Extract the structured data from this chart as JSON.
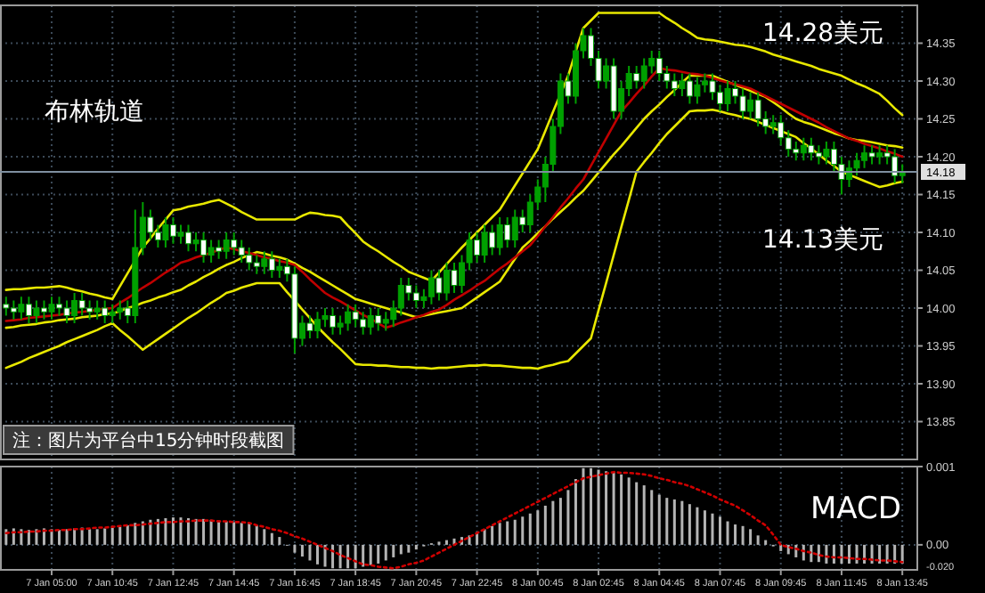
{
  "chart_data": [
    {
      "type": "candlestick",
      "color": "#00a000",
      "grid": true,
      "tick_labels": "y",
      "annotations": [
        "布林轨道",
        "14.28美元",
        "14.13美元",
        "注：图片为平台中15分钟时段截图"
      ],
      "categories": [
        null,
        null,
        null,
        null,
        null,
        null,
        null,
        null,
        null,
        null,
        null,
        null,
        null,
        null,
        null,
        null,
        null,
        null,
        null,
        null,
        null,
        null,
        null,
        null,
        null,
        null,
        null,
        null,
        null,
        null,
        null,
        null,
        null,
        null,
        null,
        null,
        null,
        null,
        null,
        null,
        null,
        null,
        null,
        null,
        null,
        null,
        null,
        null,
        null,
        null,
        null,
        null,
        null,
        null,
        null,
        null,
        null,
        null,
        null,
        null,
        null,
        null,
        null,
        null,
        null,
        null,
        null,
        null,
        null,
        null,
        null,
        null,
        null,
        null,
        null,
        null,
        null,
        null,
        null,
        null,
        null,
        null,
        null,
        null,
        null,
        null,
        null,
        null,
        null,
        null,
        null,
        null,
        null,
        null,
        null,
        null,
        null,
        null,
        null,
        null,
        null,
        null,
        null,
        null,
        null,
        null,
        null,
        null,
        null,
        null,
        null,
        null,
        null,
        null,
        null,
        null,
        null,
        null,
        null
      ],
      "ylim": [
        13.8,
        14.4
      ],
      "yticks": [
        {
          "value": 13.85,
          "label": "13.85"
        },
        {
          "value": 13.9,
          "label": "13.90"
        },
        {
          "value": 13.95,
          "label": "13.95"
        },
        {
          "value": 14,
          "label": "14.00"
        },
        {
          "value": 14.05,
          "label": "14.05"
        },
        {
          "value": 14.1,
          "label": "14.10"
        },
        {
          "value": 14.15,
          "label": "14.15"
        },
        {
          "value": 14.2,
          "label": "14.20"
        },
        {
          "value": 14.25,
          "label": "14.25"
        },
        {
          "value": 14.3,
          "label": "14.30"
        },
        {
          "value": 14.35,
          "label": "14.35"
        }
      ],
      "ref_lines": [
        {
          "axis": "y",
          "value": 14.18,
          "label": "14.18",
          "color": "#7f8fa0"
        }
      ],
      "ohlc": [
        [
          14.005,
          14.015,
          13.99,
          14.0
        ],
        [
          14.0,
          14.01,
          13.985,
          13.995
        ],
        [
          13.995,
          14.015,
          13.985,
          14.005
        ],
        [
          14.005,
          14.015,
          13.98,
          13.99
        ],
        [
          13.99,
          14.01,
          13.98,
          14.0
        ],
        [
          14.0,
          14.01,
          13.985,
          13.995
        ],
        [
          13.995,
          14.015,
          13.985,
          14.005
        ],
        [
          14.005,
          14.015,
          13.99,
          14.0
        ],
        [
          14.0,
          14.01,
          13.98,
          13.99
        ],
        [
          13.99,
          14.02,
          13.98,
          14.01
        ],
        [
          14.01,
          14.02,
          13.99,
          14.0
        ],
        [
          14.0,
          14.01,
          13.985,
          13.995
        ],
        [
          13.995,
          14.01,
          13.985,
          14.0
        ],
        [
          14.0,
          14.01,
          13.98,
          13.99
        ],
        [
          13.99,
          14.005,
          13.98,
          13.995
        ],
        [
          13.995,
          14.01,
          13.985,
          14.0
        ],
        [
          14.0,
          14.01,
          13.98,
          13.99
        ],
        [
          13.99,
          14.13,
          13.98,
          14.08
        ],
        [
          14.08,
          14.14,
          14.07,
          14.12
        ],
        [
          14.12,
          14.13,
          14.09,
          14.1
        ],
        [
          14.1,
          14.11,
          14.08,
          14.09
        ],
        [
          14.09,
          14.12,
          14.08,
          14.11
        ],
        [
          14.11,
          14.12,
          14.085,
          14.095
        ],
        [
          14.095,
          14.11,
          14.085,
          14.1
        ],
        [
          14.1,
          14.11,
          14.075,
          14.085
        ],
        [
          14.085,
          14.1,
          14.075,
          14.09
        ],
        [
          14.09,
          14.1,
          14.06,
          14.07
        ],
        [
          14.07,
          14.09,
          14.06,
          14.08
        ],
        [
          14.08,
          14.09,
          14.065,
          14.075
        ],
        [
          14.075,
          14.1,
          14.065,
          14.09
        ],
        [
          14.09,
          14.1,
          14.07,
          14.08
        ],
        [
          14.08,
          14.09,
          14.06,
          14.07
        ],
        [
          14.07,
          14.08,
          14.05,
          14.06
        ],
        [
          14.06,
          14.07,
          14.045,
          14.055
        ],
        [
          14.055,
          14.075,
          14.045,
          14.065
        ],
        [
          14.065,
          14.075,
          14.04,
          14.05
        ],
        [
          14.05,
          14.065,
          14.04,
          14.055
        ],
        [
          14.055,
          14.065,
          14.035,
          14.045
        ],
        [
          14.045,
          14.055,
          13.94,
          13.96
        ],
        [
          13.96,
          13.99,
          13.95,
          13.98
        ],
        [
          13.98,
          13.99,
          13.96,
          13.97
        ],
        [
          13.97,
          13.995,
          13.96,
          13.985
        ],
        [
          13.985,
          14.0,
          13.975,
          13.99
        ],
        [
          13.99,
          14.0,
          13.965,
          13.975
        ],
        [
          13.975,
          13.99,
          13.965,
          13.98
        ],
        [
          13.98,
          14.005,
          13.97,
          13.995
        ],
        [
          13.995,
          14.005,
          13.975,
          13.985
        ],
        [
          13.985,
          13.995,
          13.965,
          13.975
        ],
        [
          13.975,
          14.0,
          13.965,
          13.99
        ],
        [
          13.99,
          14.0,
          13.97,
          13.98
        ],
        [
          13.98,
          13.995,
          13.97,
          13.985
        ],
        [
          13.985,
          14.01,
          13.975,
          14.0
        ],
        [
          14.0,
          14.04,
          13.99,
          14.03
        ],
        [
          14.03,
          14.04,
          14.01,
          14.02
        ],
        [
          14.02,
          14.03,
          14.0,
          14.01
        ],
        [
          14.01,
          14.025,
          14.0,
          14.015
        ],
        [
          14.015,
          14.05,
          14.005,
          14.04
        ],
        [
          14.04,
          14.05,
          14.01,
          14.02
        ],
        [
          14.02,
          14.06,
          14.01,
          14.05
        ],
        [
          14.05,
          14.06,
          14.02,
          14.03
        ],
        [
          14.03,
          14.07,
          14.02,
          14.06
        ],
        [
          14.06,
          14.1,
          14.05,
          14.09
        ],
        [
          14.09,
          14.1,
          14.06,
          14.07
        ],
        [
          14.07,
          14.11,
          14.06,
          14.1
        ],
        [
          14.1,
          14.11,
          14.07,
          14.08
        ],
        [
          14.08,
          14.12,
          14.07,
          14.11
        ],
        [
          14.11,
          14.12,
          14.08,
          14.09
        ],
        [
          14.09,
          14.13,
          14.08,
          14.12
        ],
        [
          14.12,
          14.13,
          14.1,
          14.11
        ],
        [
          14.11,
          14.15,
          14.1,
          14.14
        ],
        [
          14.14,
          14.17,
          14.13,
          14.16
        ],
        [
          14.16,
          14.2,
          14.14,
          14.19
        ],
        [
          14.19,
          14.25,
          14.18,
          14.24
        ],
        [
          14.24,
          14.31,
          14.23,
          14.3
        ],
        [
          14.3,
          14.31,
          14.27,
          14.28
        ],
        [
          14.28,
          14.35,
          14.27,
          14.34
        ],
        [
          14.34,
          14.37,
          14.33,
          14.36
        ],
        [
          14.36,
          14.37,
          14.32,
          14.33
        ],
        [
          14.33,
          14.34,
          14.29,
          14.3
        ],
        [
          14.3,
          14.33,
          14.29,
          14.32
        ],
        [
          14.32,
          14.33,
          14.25,
          14.26
        ],
        [
          14.26,
          14.3,
          14.25,
          14.29
        ],
        [
          14.29,
          14.32,
          14.28,
          14.31
        ],
        [
          14.31,
          14.32,
          14.29,
          14.3
        ],
        [
          14.3,
          14.33,
          14.29,
          14.32
        ],
        [
          14.32,
          14.34,
          14.31,
          14.33
        ],
        [
          14.33,
          14.34,
          14.3,
          14.31
        ],
        [
          14.31,
          14.32,
          14.29,
          14.3
        ],
        [
          14.3,
          14.31,
          14.28,
          14.29
        ],
        [
          14.29,
          14.31,
          14.28,
          14.3
        ],
        [
          14.3,
          14.31,
          14.27,
          14.28
        ],
        [
          14.28,
          14.305,
          14.27,
          14.295
        ],
        [
          14.295,
          14.31,
          14.285,
          14.3
        ],
        [
          14.3,
          14.31,
          14.275,
          14.285
        ],
        [
          14.285,
          14.295,
          14.26,
          14.27
        ],
        [
          14.27,
          14.3,
          14.26,
          14.29
        ],
        [
          14.29,
          14.3,
          14.27,
          14.28
        ],
        [
          14.28,
          14.29,
          14.25,
          14.26
        ],
        [
          14.26,
          14.285,
          14.25,
          14.275
        ],
        [
          14.275,
          14.285,
          14.24,
          14.25
        ],
        [
          14.25,
          14.26,
          14.23,
          14.24
        ],
        [
          14.24,
          14.255,
          14.23,
          14.245
        ],
        [
          14.245,
          14.255,
          14.215,
          14.225
        ],
        [
          14.225,
          14.235,
          14.2,
          14.21
        ],
        [
          14.21,
          14.22,
          14.195,
          14.205
        ],
        [
          14.205,
          14.225,
          14.195,
          14.215
        ],
        [
          14.215,
          14.225,
          14.195,
          14.205
        ],
        [
          14.205,
          14.215,
          14.19,
          14.2
        ],
        [
          14.2,
          14.22,
          14.19,
          14.21
        ],
        [
          14.21,
          14.22,
          14.18,
          14.19
        ],
        [
          14.19,
          14.2,
          14.15,
          14.17
        ],
        [
          14.17,
          14.195,
          14.16,
          14.185
        ],
        [
          14.185,
          14.205,
          14.175,
          14.195
        ],
        [
          14.195,
          14.215,
          14.185,
          14.205
        ],
        [
          14.205,
          14.215,
          14.19,
          14.2
        ],
        [
          14.2,
          14.215,
          14.19,
          14.205
        ],
        [
          14.205,
          14.215,
          14.19,
          14.2
        ],
        [
          14.2,
          14.21,
          14.165,
          14.175
        ],
        [
          14.175,
          14.19,
          14.165,
          14.18
        ]
      ],
      "series": [
        {
          "type": "line",
          "color": "#e8e800",
          "values": [
            14.024,
            14.025,
            14.025,
            14.026,
            14.027,
            14.027,
            14.028,
            14.029,
            14.027,
            14.024,
            14.022,
            14.019,
            14.017,
            14.014,
            14.012,
            14.029,
            14.046,
            14.063,
            14.08,
            14.092,
            14.105,
            14.117,
            14.129,
            14.131,
            14.134,
            14.136,
            14.138,
            14.141,
            14.143,
            14.138,
            14.133,
            14.127,
            14.122,
            14.117,
            14.117,
            14.117,
            14.117,
            14.117,
            14.117,
            14.122,
            14.126,
            14.125,
            14.123,
            14.122,
            14.12,
            14.109,
            14.099,
            14.088,
            14.081,
            14.075,
            14.068,
            14.061,
            14.055,
            14.048,
            14.044,
            14.04,
            14.036,
            14.047,
            14.058,
            14.069,
            14.08,
            14.09,
            14.1,
            14.11,
            14.12,
            14.13,
            14.146,
            14.162,
            14.178,
            14.194,
            14.21,
            14.234,
            14.259,
            14.283,
            14.307,
            14.339,
            14.37,
            14.38,
            14.39,
            14.39,
            14.39,
            14.39,
            14.39,
            14.39,
            14.39,
            14.39,
            14.39,
            14.383,
            14.377,
            14.37,
            14.364,
            14.357,
            14.355,
            14.354,
            14.352,
            14.35,
            14.348,
            14.347,
            14.345,
            14.342,
            14.339,
            14.335,
            14.332,
            14.329,
            14.326,
            14.323,
            14.32,
            14.316,
            14.313,
            14.31,
            14.307,
            14.302,
            14.297,
            14.293,
            14.288,
            14.283,
            14.274,
            14.264,
            14.255
          ]
        },
        {
          "type": "line",
          "color": "#e8e800",
          "values": [
            13.974,
            13.975,
            13.977,
            13.978,
            13.979,
            13.981,
            13.982,
            13.984,
            13.985,
            13.986,
            13.988,
            13.989,
            13.99,
            13.992,
            13.993,
            13.996,
            14.0,
            14.003,
            14.007,
            14.01,
            14.014,
            14.017,
            14.021,
            14.024,
            14.03,
            14.035,
            14.041,
            14.046,
            14.052,
            14.057,
            14.061,
            14.066,
            14.07,
            14.074,
            14.072,
            14.069,
            14.067,
            14.064,
            14.059,
            14.053,
            14.048,
            14.042,
            14.036,
            14.03,
            14.024,
            14.018,
            14.012,
            14.009,
            14.006,
            14.003,
            14.0,
            13.997,
            13.994,
            13.991,
            13.988,
            13.99,
            13.992,
            13.994,
            13.996,
            13.998,
            14.0,
            14.007,
            14.014,
            14.021,
            14.028,
            14.035,
            14.05,
            14.065,
            14.08,
            14.089,
            14.099,
            14.108,
            14.118,
            14.127,
            14.136,
            14.146,
            14.155,
            14.167,
            14.179,
            14.191,
            14.203,
            14.214,
            14.226,
            14.238,
            14.25,
            14.26,
            14.269,
            14.279,
            14.288,
            14.298,
            14.307,
            14.307,
            14.307,
            14.307,
            14.303,
            14.299,
            14.295,
            14.291,
            14.287,
            14.283,
            14.279,
            14.272,
            14.265,
            14.257,
            14.25,
            14.246,
            14.243,
            14.239,
            14.235,
            14.231,
            14.228,
            14.224,
            14.222,
            14.221,
            14.219,
            14.217,
            14.215,
            14.214,
            14.212
          ]
        },
        {
          "type": "line",
          "color": "#e8e800",
          "values": [
            13.921,
            13.925,
            13.929,
            13.934,
            13.938,
            13.942,
            13.946,
            13.95,
            13.955,
            13.959,
            13.963,
            13.967,
            13.971,
            13.976,
            13.98,
            13.971,
            13.963,
            13.954,
            13.945,
            13.952,
            13.959,
            13.966,
            13.973,
            13.98,
            13.987,
            13.993,
            14.0,
            14.007,
            14.013,
            14.02,
            14.023,
            14.027,
            14.03,
            14.033,
            14.033,
            14.033,
            14.033,
            14.021,
            14.01,
            13.998,
            13.987,
            13.975,
            13.965,
            13.955,
            13.946,
            13.936,
            13.926,
            13.925,
            13.925,
            13.924,
            13.924,
            13.923,
            13.922,
            13.922,
            13.921,
            13.921,
            13.92,
            13.921,
            13.921,
            13.922,
            13.923,
            13.924,
            13.924,
            13.925,
            13.924,
            13.924,
            13.923,
            13.922,
            13.921,
            13.921,
            13.92,
            13.923,
            13.925,
            13.928,
            13.93,
            13.94,
            13.95,
            13.96,
            13.997,
            14.033,
            14.07,
            14.107,
            14.143,
            14.18,
            14.193,
            14.205,
            14.218,
            14.23,
            14.24,
            14.25,
            14.26,
            14.261,
            14.261,
            14.262,
            14.26,
            14.257,
            14.255,
            14.252,
            14.25,
            14.246,
            14.242,
            14.238,
            14.234,
            14.23,
            14.226,
            14.218,
            14.211,
            14.203,
            14.195,
            14.188,
            14.18,
            14.176,
            14.172,
            14.168,
            14.164,
            14.16,
            14.162,
            14.165,
            14.167
          ]
        },
        {
          "type": "line",
          "color": "#c00000",
          "values": [
            13.983,
            13.984,
            13.985,
            13.987,
            13.988,
            13.989,
            13.99,
            13.991,
            13.993,
            13.994,
            13.995,
            13.996,
            13.998,
            13.999,
            14.0,
            14.007,
            14.013,
            14.02,
            14.027,
            14.033,
            14.04,
            14.047,
            14.053,
            14.06,
            14.063,
            14.067,
            14.07,
            14.073,
            14.077,
            14.08,
            14.078,
            14.075,
            14.073,
            14.07,
            14.067,
            14.065,
            14.062,
            14.06,
            14.057,
            14.048,
            14.038,
            14.029,
            14.02,
            14.014,
            14.009,
            14.003,
            13.997,
            13.991,
            13.986,
            13.98,
            13.974,
            13.977,
            13.981,
            13.984,
            13.988,
            13.991,
            13.995,
            13.998,
            14.004,
            14.011,
            14.017,
            14.023,
            14.03,
            14.036,
            14.044,
            14.052,
            14.059,
            14.067,
            14.075,
            14.083,
            14.095,
            14.108,
            14.12,
            14.133,
            14.145,
            14.158,
            14.17,
            14.188,
            14.206,
            14.224,
            14.242,
            14.26,
            14.271,
            14.283,
            14.294,
            14.306,
            14.317,
            14.315,
            14.314,
            14.312,
            14.31,
            14.309,
            14.307,
            14.304,
            14.301,
            14.298,
            14.296,
            14.293,
            14.29,
            14.285,
            14.28,
            14.275,
            14.27,
            14.265,
            14.26,
            14.255,
            14.25,
            14.245,
            14.239,
            14.234,
            14.229,
            14.224,
            14.221,
            14.217,
            14.214,
            14.211,
            14.207,
            14.204,
            14.2
          ]
        }
      ]
    },
    {
      "type": "bar",
      "title": "MACD",
      "grid": true,
      "annotations": [
        "-0.020"
      ],
      "categories": [
        null,
        null,
        null,
        null,
        null,
        null,
        "7 Jan 05:00",
        null,
        null,
        null,
        null,
        null,
        null,
        null,
        "7 Jan 10:45",
        null,
        null,
        null,
        null,
        null,
        null,
        null,
        "7 Jan 12:45",
        null,
        null,
        null,
        null,
        null,
        null,
        null,
        "7 Jan 14:45",
        null,
        null,
        null,
        null,
        null,
        null,
        null,
        "7 Jan 16:45",
        null,
        null,
        null,
        null,
        null,
        null,
        null,
        "7 Jan 18:45",
        null,
        null,
        null,
        null,
        null,
        null,
        null,
        "7 Jan 20:45",
        null,
        null,
        null,
        null,
        null,
        null,
        null,
        "7 Jan 22:45",
        null,
        null,
        null,
        null,
        null,
        null,
        null,
        "8 Jan 00:45",
        null,
        null,
        null,
        null,
        null,
        null,
        null,
        "8 Jan 02:45",
        null,
        null,
        null,
        null,
        null,
        null,
        null,
        "8 Jan 04:45",
        null,
        null,
        null,
        null,
        null,
        null,
        null,
        "8 Jan 07:45",
        null,
        null,
        null,
        null,
        null,
        null,
        null,
        "8 Jan 09:45",
        null,
        null,
        null,
        null,
        null,
        null,
        null,
        "8 Jan 11:45",
        null,
        null,
        null,
        null,
        null,
        null,
        null,
        "8 Jan 13:45"
      ],
      "ylim": [
        -0.00032,
        0.001
      ],
      "yticks": [
        {
          "value": 0.001,
          "label": "0.001"
        },
        {
          "value": 0,
          "label": "0.00"
        }
      ],
      "series": [
        {
          "color": "#b4b4b4",
          "values": [
            0.0002,
            0.00021,
            0.0002,
            0.00019,
            0.0002,
            0.00021,
            0.0002,
            0.00019,
            0.0002,
            0.00021,
            0.00022,
            0.0002,
            0.0002,
            0.00021,
            0.00022,
            0.00023,
            0.00025,
            0.00028,
            0.0003,
            0.00032,
            0.00033,
            0.00034,
            0.00035,
            0.00035,
            0.00034,
            0.00033,
            0.00033,
            0.00032,
            0.00031,
            0.0003,
            0.00029,
            0.00028,
            0.00027,
            0.00025,
            0.0002,
            0.00015,
            0.0001,
            0,
            -0.0001,
            -0.00015,
            -0.0002,
            -0.00025,
            -0.00028,
            -0.0003,
            -0.0003,
            -0.0003,
            -0.0003,
            -0.00028,
            -0.00026,
            -0.00024,
            -0.0002,
            -0.00016,
            -0.00012,
            -0.0001,
            -6e-05,
            -2e-05,
            2e-05,
            4e-05,
            6e-05,
            8e-05,
            0.0001,
            0.00012,
            0.00016,
            0.0002,
            0.00024,
            0.00028,
            0.0003,
            0.00032,
            0.00036,
            0.0004,
            0.00044,
            0.0005,
            0.00056,
            0.0006,
            0.0007,
            0.00084,
            0.00098,
            0.00098,
            0.00096,
            0.00094,
            0.00092,
            0.0009,
            0.00086,
            0.0008,
            0.00076,
            0.0007,
            0.00064,
            0.0006,
            0.00058,
            0.00056,
            0.00052,
            0.00048,
            0.00044,
            0.0004,
            0.00036,
            0.0003,
            0.00026,
            0.00024,
            0.0002,
            0.00012,
            6e-05,
            -2e-05,
            -8e-05,
            -0.00012,
            -0.00016,
            -0.0002,
            -0.00022,
            -0.00022,
            -0.00024,
            -0.00024,
            -0.00024,
            -0.00024,
            -0.00024,
            -0.00024,
            -0.00024,
            -0.00024,
            -0.00024,
            -0.00024,
            -0.00024
          ]
        },
        {
          "type": "line",
          "color": "#d00000",
          "line_style": "dotted",
          "values": [
            0.00015,
            0.00016,
            0.00016,
            0.00017,
            0.00017,
            0.00018,
            0.00018,
            0.00019,
            0.00019,
            0.0002,
            0.0002,
            0.00021,
            0.00022,
            0.00022,
            0.00023,
            0.00024,
            0.00025,
            0.00025,
            0.00026,
            0.00027,
            0.00028,
            0.00029,
            0.00029,
            0.0003,
            0.0003,
            0.00031,
            0.00031,
            0.00031,
            0.0003,
            0.0003,
            0.00029,
            0.00029,
            0.00028,
            0.00025,
            0.00023,
            0.0002,
            0.00018,
            0.00015,
            0.00011,
            8e-05,
            4e-05,
            0,
            -4e-05,
            -8e-05,
            -0.00013,
            -0.00017,
            -0.00021,
            -0.00025,
            -0.00026,
            -0.00028,
            -0.00029,
            -0.0003,
            -0.00028,
            -0.00025,
            -0.00023,
            -0.0002,
            -0.00015,
            -0.0001,
            -5e-05,
            0,
            5e-05,
            0.0001,
            0.00015,
            0.0002,
            0.00025,
            0.0003,
            0.00035,
            0.0004,
            0.00045,
            0.0005,
            0.00055,
            0.0006,
            0.00065,
            0.0007,
            0.00075,
            0.0008,
            0.00085,
            0.00087,
            0.00089,
            0.00091,
            0.00093,
            0.00092,
            0.00092,
            0.00091,
            0.0009,
            0.00088,
            0.00085,
            0.00083,
            0.0008,
            0.00078,
            0.00075,
            0.00071,
            0.00067,
            0.00063,
            0.00058,
            0.00054,
            0.0005,
            0.00044,
            0.00038,
            0.00031,
            0.00025,
            0.00013,
            0,
            -3e-05,
            -5e-05,
            -8e-05,
            -0.0001,
            -0.00013,
            -0.00015,
            -0.00016,
            -0.00016,
            -0.00017,
            -0.00018,
            -0.00018,
            -0.00019,
            -0.0002,
            -0.0002,
            -0.00021,
            -0.00022
          ]
        }
      ]
    }
  ]
}
